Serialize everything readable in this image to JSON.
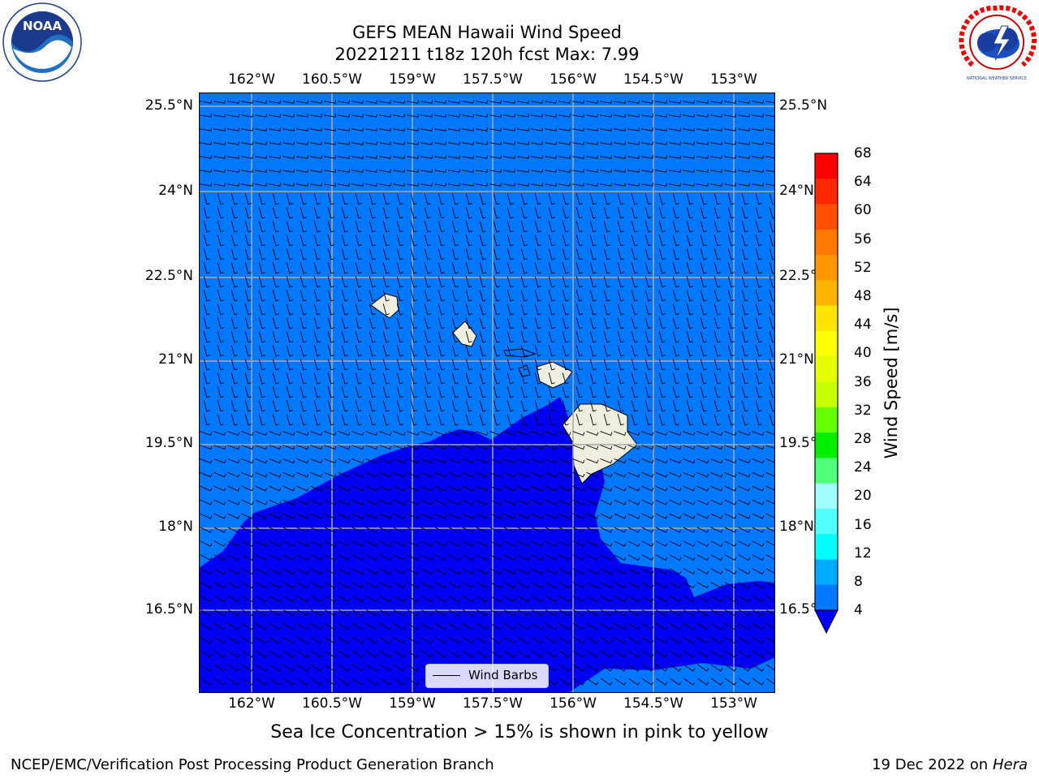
{
  "title_line1": "GEFS MEAN Hawaii Wind Speed",
  "title_line2": "20221211 t18z 120h fcst   Max: 7.99",
  "lon_ticks": [
    "162°W",
    "160.5°W",
    "159°W",
    "157.5°W",
    "156°W",
    "154.5°W",
    "153°W"
  ],
  "lat_ticks_left": [
    "25.5°N",
    "24°N",
    "22.5°N",
    "21°N",
    "19.5°N",
    "18°N",
    "16.5°N"
  ],
  "lat_ticks_right": [
    "25.5°N",
    "24°N",
    "22.5°",
    "21°N",
    "19.5°",
    "18°N",
    "16.5°"
  ],
  "colorbar": {
    "label": "Wind Speed [m/s]",
    "ticks": [
      "68",
      "64",
      "60",
      "56",
      "52",
      "48",
      "44",
      "40",
      "36",
      "32",
      "28",
      "24",
      "20",
      "16",
      "12",
      "8",
      "4"
    ],
    "colors": [
      "#ff0000",
      "#ff2800",
      "#ff5000",
      "#ff7800",
      "#ff9600",
      "#ffb400",
      "#ffe600",
      "#ffff00",
      "#e6ff00",
      "#c8ff00",
      "#64ff00",
      "#00f000",
      "#50ff78",
      "#a0ffff",
      "#50ffff",
      "#00ffff",
      "#00aaff",
      "#0078ff"
    ],
    "under_color": "#0000ff"
  },
  "legend_label": "Wind Barbs",
  "caption": "Sea Ice Concentration > 15% is shown in pink to yellow",
  "footer_left": "NCEP/EMC/Verification Post Processing Product Generation Branch",
  "footer_right_date": "19 Dec 2022 on",
  "footer_right_host": "Hera",
  "noaa_logo_text": "NOAA",
  "nws_logo_text": "NATIONAL WEATHER SERVICE",
  "map_colors": {
    "low_wind": "#0000f5",
    "mid_wind": "#0078ff",
    "land": "#efedde",
    "grid": "#aaaaaa"
  }
}
